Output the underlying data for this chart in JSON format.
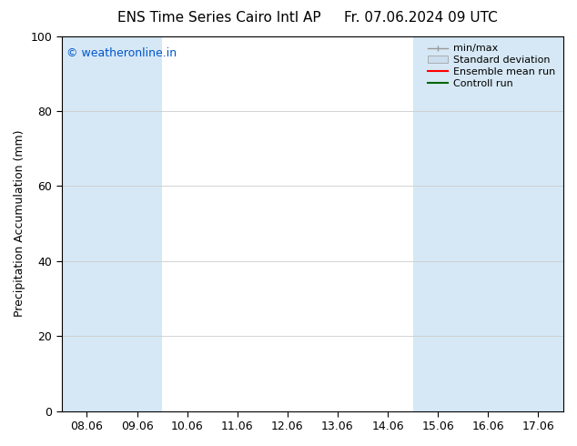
{
  "title_left": "ENS Time Series Cairo Intl AP",
  "title_right": "Fr. 07.06.2024 09 UTC",
  "ylabel": "Precipitation Accumulation (mm)",
  "watermark": "© weatheronline.in",
  "watermark_color": "#0055cc",
  "ylim": [
    0,
    100
  ],
  "yticks": [
    0,
    20,
    40,
    60,
    80,
    100
  ],
  "xtick_labels": [
    "08.06",
    "09.06",
    "10.06",
    "11.06",
    "12.06",
    "13.06",
    "14.06",
    "15.06",
    "16.06",
    "17.06"
  ],
  "background_color": "#ffffff",
  "plot_bg_color": "#ffffff",
  "shade_color": "#d6e8f5",
  "shaded_indices": [
    0,
    1,
    7,
    8,
    9
  ],
  "legend_items": [
    {
      "label": "min/max",
      "style": "minmax"
    },
    {
      "label": "Standard deviation",
      "style": "stddev"
    },
    {
      "label": "Ensemble mean run",
      "color": "#ff0000",
      "style": "line"
    },
    {
      "label": "Controll run",
      "color": "#006600",
      "style": "line"
    }
  ],
  "title_fontsize": 11,
  "ylabel_fontsize": 9,
  "tick_fontsize": 9,
  "legend_fontsize": 8,
  "watermark_fontsize": 9
}
